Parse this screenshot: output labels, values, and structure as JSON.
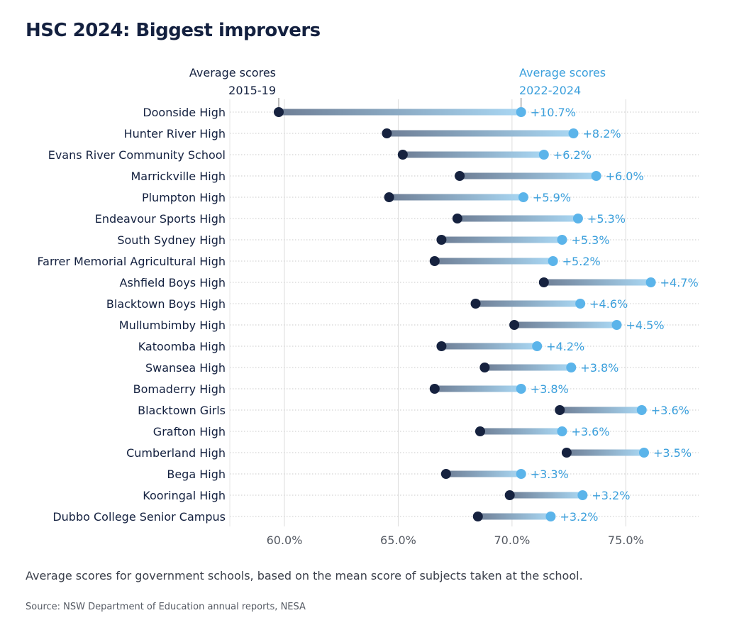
{
  "title": "HSC 2024: Biggest improvers",
  "caption": "Average scores for government schools, based on the mean score of subjects taken at the school.",
  "source": "Source: NSW Department of Education annual reports, NESA",
  "colors": {
    "dark": "#16223f",
    "light": "#5bb4ea",
    "label_light": "#3a9fdc",
    "text": "#13203f",
    "grid": "#d9d9d9"
  },
  "chart_data": {
    "type": "dumbbell",
    "title": "HSC 2024: Biggest improvers",
    "legend": {
      "start": [
        "Average scores",
        "2015-19"
      ],
      "end": [
        "Average scores",
        "2022-2024"
      ]
    },
    "xlim": [
      57.6,
      78.2
    ],
    "xticks": [
      60,
      65,
      70,
      75
    ],
    "xtick_labels": [
      "60.0%",
      "65.0%",
      "70.0%",
      "75.0%"
    ],
    "grid": true,
    "categories": [
      "Doonside High",
      "Hunter River High",
      "Evans River Community School",
      "Marrickville High",
      "Plumpton High",
      "Endeavour Sports High",
      "South Sydney High",
      "Farrer Memorial Agricultural High",
      "Ashfield Boys High",
      "Blacktown Boys High",
      "Mullumbimby High",
      "Katoomba High",
      "Swansea High",
      "Bomaderry High",
      "Blacktown Girls",
      "Grafton High",
      "Cumberland High",
      "Bega High",
      "Kooringal High",
      "Dubbo College Senior Campus"
    ],
    "series": [
      {
        "name": "Average scores 2015-19",
        "values": [
          59.75,
          64.5,
          65.2,
          67.7,
          64.6,
          67.6,
          66.9,
          66.6,
          71.4,
          68.4,
          70.1,
          66.9,
          68.8,
          66.6,
          72.1,
          68.6,
          72.4,
          67.1,
          69.9,
          68.5
        ]
      },
      {
        "name": "Average scores 2022-2024",
        "values": [
          70.4,
          72.7,
          71.4,
          73.7,
          70.5,
          72.9,
          72.2,
          71.8,
          76.1,
          73.0,
          74.6,
          71.1,
          72.6,
          70.4,
          75.7,
          72.2,
          75.8,
          70.4,
          73.1,
          71.7
        ]
      }
    ],
    "labels": [
      "+10.7%",
      "+8.2%",
      "+6.2%",
      "+6.0%",
      "+5.9%",
      "+5.3%",
      "+5.3%",
      "+5.2%",
      "+4.7%",
      "+4.6%",
      "+4.5%",
      "+4.2%",
      "+3.8%",
      "+3.8%",
      "+3.6%",
      "+3.6%",
      "+3.5%",
      "+3.3%",
      "+3.2%",
      "+3.2%"
    ]
  }
}
